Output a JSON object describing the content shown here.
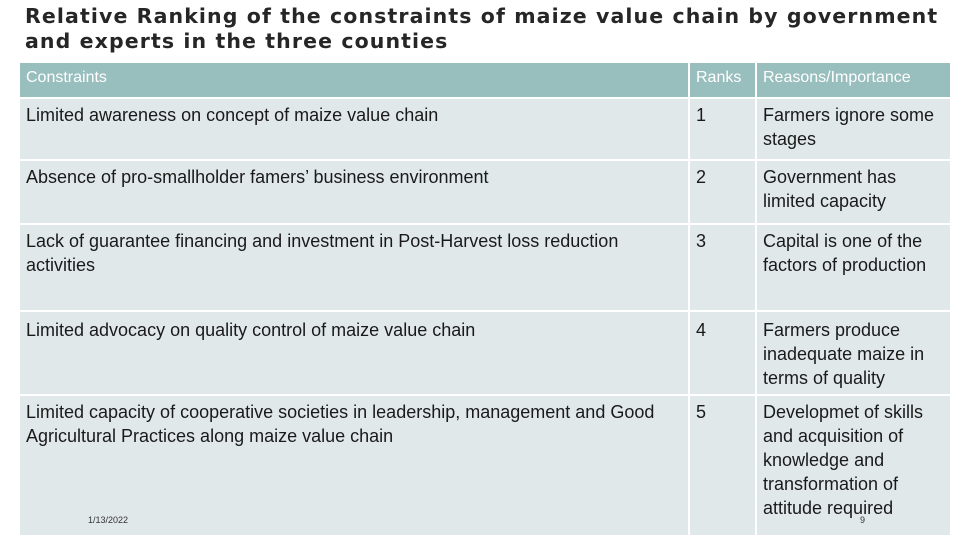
{
  "title": "Relative Ranking of the constraints of maize value chain by government and experts in the three counties",
  "table": {
    "headers": {
      "constraint": "Constraints",
      "rank": "Ranks",
      "reason": "Reasons/Importance"
    },
    "rows": [
      {
        "constraint": "Limited awareness on concept of maize value chain",
        "rank": "1",
        "reason": "Farmers ignore some stages"
      },
      {
        "constraint": "Absence of pro-smallholder famers’ business environment",
        "rank": "2",
        "reason": "Government has limited capacity"
      },
      {
        "constraint": "Lack of guarantee financing and investment in Post-Harvest loss reduction activities",
        "rank": "3",
        "reason": "Capital is one of the factors of production"
      },
      {
        "constraint": "Limited advocacy on quality control of maize value chain",
        "rank": "4",
        "reason": "Farmers produce inadequate maize in terms of quality"
      },
      {
        "constraint": "Limited capacity of cooperative societies in leadership, management and Good Agricultural Practices along maize value chain",
        "rank": "5",
        "reason": "Developmet of skills and acquisition of knowledge and transformation of attitude required"
      }
    ]
  },
  "footer": {
    "date": "1/13/2022",
    "page": "9"
  },
  "colors": {
    "header_bg": "#98bfbd",
    "cell_bg": "#e1e8ea",
    "title_text": "#262626"
  }
}
